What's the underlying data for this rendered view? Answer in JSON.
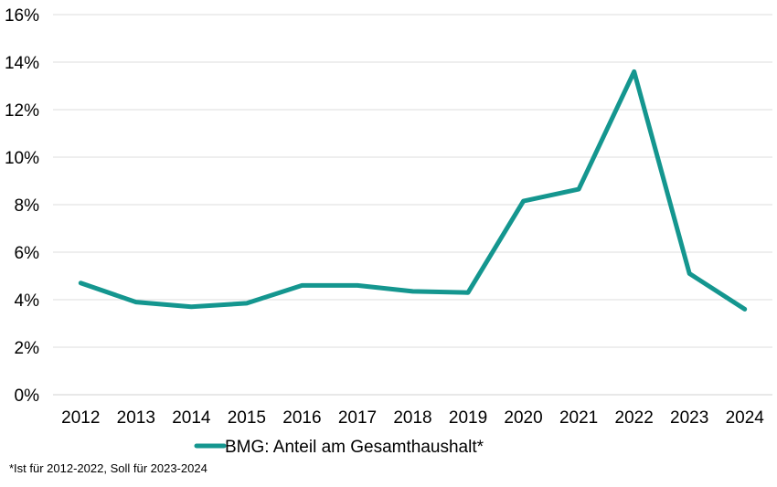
{
  "chart_data": {
    "type": "line",
    "categories": [
      "2012",
      "2013",
      "2014",
      "2015",
      "2016",
      "2017",
      "2018",
      "2019",
      "2020",
      "2021",
      "2022",
      "2023",
      "2024"
    ],
    "series": [
      {
        "name": "BMG: Anteil am Gesamthaushalt*",
        "color": "#14968f",
        "values": [
          4.7,
          3.9,
          3.7,
          3.85,
          4.6,
          4.6,
          4.35,
          4.3,
          8.15,
          8.65,
          13.6,
          5.1,
          3.6
        ]
      }
    ],
    "ylim": [
      0,
      16
    ],
    "yticks": [
      0,
      2,
      4,
      6,
      8,
      10,
      12,
      14,
      16
    ],
    "ytick_labels": [
      "0%",
      "2%",
      "4%",
      "6%",
      "8%",
      "10%",
      "12%",
      "14%",
      "16%"
    ],
    "grid": true,
    "legend_position": "bottom",
    "footnote": "*Ist für 2012-2022, Soll für 2023-2024"
  }
}
